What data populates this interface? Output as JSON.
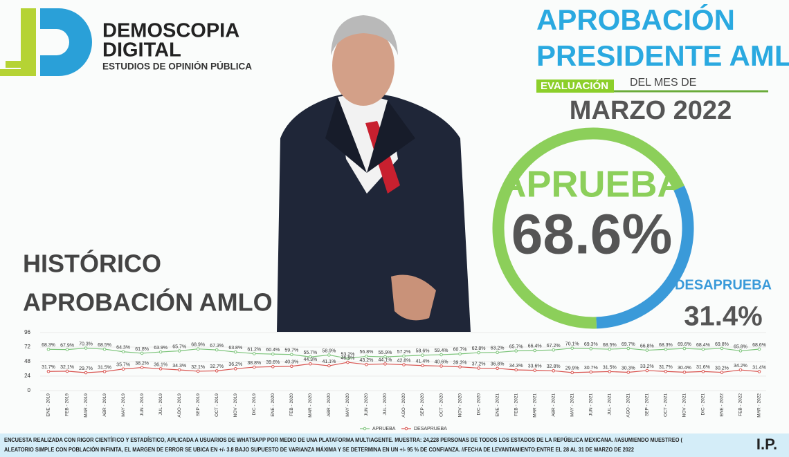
{
  "header": {
    "brand": "DEMOSCOPIA",
    "brand2": "DIGITAL",
    "tagline": "ESTUDIOS DE OPINIÓN PÚBLICA",
    "title_line1": "APROBACIÓN",
    "title_line2": "PRESIDENTE AMLO",
    "evaluation": "EVALUACIÓN",
    "month_prefix": "DEL MES DE",
    "period": "MARZO 2022"
  },
  "summary": {
    "approve": {
      "label": "APRUEBA",
      "value": 68.6,
      "value_label": "68.6%",
      "color": "#8ccf5a"
    },
    "disapprove": {
      "label": "DESAPRUEBA",
      "value": 31.4,
      "value_label": "31.4%",
      "color": "#3a9ad9"
    }
  },
  "chart_data": {
    "type": "line",
    "title": "HISTÓRICO",
    "subtitle": "APROBACIÓN AMLO",
    "categories": [
      "ENE - 2019",
      "FEB - 2019",
      "MAR - 2019",
      "ABR - 2019",
      "MAY - 2019",
      "JUN - 2019",
      "JUL - 2019",
      "AGO - 2019",
      "SEP - 2019",
      "OCT - 2019",
      "NOV - 2019",
      "DIC - 2019",
      "ENE - 2020",
      "FEB - 2020",
      "MAR - 2020",
      "ABR - 2020",
      "MAY - 2020",
      "JUN - 2020",
      "JUL - 2020",
      "AGO - 2020",
      "SEP - 2020",
      "OCT - 2020",
      "NOV - 2020",
      "DIC - 2020",
      "ENE - 2021",
      "FEB - 2021",
      "MAR - 2021",
      "ABR - 2021",
      "MAY - 2021",
      "JUN - 2021",
      "JUL - 2021",
      "AGO - 2021",
      "SEP - 2021",
      "OCT - 2021",
      "NOV - 2021",
      "DIC - 2021",
      "ENE - 2022",
      "FEB - 2022",
      "MAR - 2022"
    ],
    "series": [
      {
        "name": "APRUEBA",
        "color": "#7cc47a",
        "values": [
          68.3,
          67.9,
          70.3,
          68.5,
          64.3,
          61.8,
          63.9,
          65.7,
          68.9,
          67.3,
          63.8,
          61.2,
          60.4,
          59.7,
          55.7,
          58.9,
          53.2,
          56.8,
          55.9,
          57.2,
          58.6,
          59.4,
          60.7,
          62.8,
          63.2,
          65.7,
          66.4,
          67.2,
          70.1,
          69.3,
          68.5,
          69.7,
          66.8,
          68.3,
          69.6,
          68.4,
          69.8,
          65.8,
          68.6
        ],
        "value_labels": [
          "68.3%",
          "67.9%",
          "70.3%",
          "68.5%",
          "64.3%",
          "61.8%",
          "63.9%",
          "65.7%",
          "68.9%",
          "67.3%",
          "63.8%",
          "61.2%",
          "60.4%",
          "59.7%",
          "55.7%",
          "58.9%",
          "53.2%",
          "56.8%",
          "55.9%",
          "57.2%",
          "58.6%",
          "59.4%",
          "60.7%",
          "62.8%",
          "63.2%",
          "65.7%",
          "66.4%",
          "67.2%",
          "70.1%",
          "69.3%",
          "68.5%",
          "69.7%",
          "66.8%",
          "68.3%",
          "69.6%",
          "68.4%",
          "69.8%",
          "65.8%",
          "68.6%"
        ]
      },
      {
        "name": "DESAPRUEBA",
        "color": "#d9534f",
        "values": [
          31.7,
          32.1,
          29.7,
          31.5,
          35.7,
          38.2,
          36.1,
          34.3,
          32.1,
          32.7,
          36.2,
          38.8,
          39.6,
          40.3,
          44.3,
          41.1,
          46.8,
          43.2,
          44.1,
          42.8,
          41.4,
          40.6,
          39.3,
          37.2,
          36.8,
          34.3,
          33.6,
          32.8,
          29.9,
          30.7,
          31.5,
          30.3,
          33.2,
          31.7,
          30.4,
          31.6,
          30.2,
          34.2,
          31.4
        ],
        "value_labels": [
          "31.7%",
          "32.1%",
          "29.7%",
          "31.5%",
          "35.7%",
          "38.2%",
          "36.1%",
          "34.3%",
          "32.1%",
          "32.7%",
          "36.2%",
          "38.8%",
          "39.6%",
          "40.3%",
          "44.3%",
          "41.1%",
          "46.8%",
          "43.2%",
          "44.1%",
          "42.8%",
          "41.4%",
          "40.6%",
          "39.3%",
          "37.2%",
          "36.8%",
          "34.3%",
          "33.6%",
          "32.8%",
          "29.9%",
          "30.7%",
          "31.5%",
          "30.3%",
          "33.2%",
          "31.7%",
          "30.4%",
          "31.6%",
          "30.2%",
          "34.2%",
          "31.4%"
        ]
      }
    ],
    "ylim": [
      0,
      96
    ],
    "yticks": [
      0,
      24,
      48,
      72,
      96
    ],
    "grid": true,
    "legend": "bottom"
  },
  "footer": {
    "lines": [
      "ENCUESTA REALIZADA CON RIGOR CIENTÍFICO Y ESTADÍSTICO, APLICADA A USUARIOS DE WHATSAPP POR MEDIO DE UNA PLATAFORMA MULTIAGENTE. MUESTRA: 24,228 PERSONAS DE TODOS LOS ESTADOS DE LA REPÚBLICA MEXICANA. //ASUMIENDO MUESTREO (",
      "ALEATORIO SIMPLE CON POBLACIÓN INFINITA, EL MARGEN DE ERROR SE UBICA EN +/- 3.8 BAJO SUPUESTO DE VARIANZA MÁXIMA Y SE DETERMINA EN UN +/- 95 % DE CONFIANZA. //FECHA DE LEVANTAMIENTO:ENTRE EL 28 AL 31 DE MARZO DE 2022"
    ],
    "signature": "I.P."
  }
}
